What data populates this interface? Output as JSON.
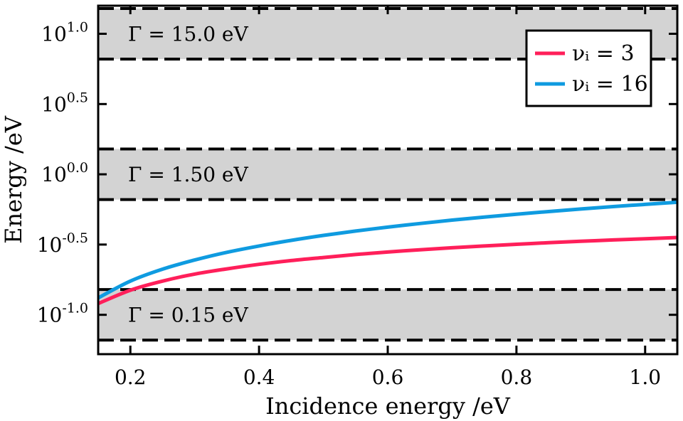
{
  "chart_data": {
    "type": "line",
    "xlabel": "Incidence energy /eV",
    "ylabel": "Energy /eV",
    "xlim": [
      0.15,
      1.05
    ],
    "ylim": [
      -1.28,
      1.2
    ],
    "y_scale": "log10",
    "grid": false,
    "legend_position": "top-right",
    "x_ticks": [
      {
        "value": 0.2,
        "label": "0.2"
      },
      {
        "value": 0.4,
        "label": "0.4"
      },
      {
        "value": 0.6,
        "label": "0.6"
      },
      {
        "value": 0.8,
        "label": "0.8"
      },
      {
        "value": 1.0,
        "label": "1.0"
      }
    ],
    "y_ticks": [
      {
        "value": 1.0,
        "base": "10",
        "exp": "1.0"
      },
      {
        "value": 0.5,
        "base": "10",
        "exp": "0.5"
      },
      {
        "value": 0.0,
        "base": "10",
        "exp": "0.0"
      },
      {
        "value": -0.5,
        "base": "10",
        "exp": "-0.5"
      },
      {
        "value": -1.0,
        "base": "10",
        "exp": "-1.0"
      }
    ],
    "bands": [
      {
        "label": "Γ = 15.0 eV",
        "y_low": 0.82,
        "y_high": 1.18,
        "label_y": 1.0
      },
      {
        "label": "Γ = 1.50 eV",
        "y_low": -0.18,
        "y_high": 0.18,
        "label_y": 0.0
      },
      {
        "label": "Γ = 0.15 eV",
        "y_low": -1.18,
        "y_high": -0.82,
        "label_y": -1.0
      }
    ],
    "series": [
      {
        "name": "νᵢ = 3",
        "color": "#ff1f5a",
        "x": [
          0.15,
          0.2,
          0.25,
          0.3,
          0.35,
          0.4,
          0.45,
          0.5,
          0.55,
          0.6,
          0.65,
          0.7,
          0.75,
          0.8,
          0.85,
          0.9,
          0.95,
          1.0,
          1.05
        ],
        "y": [
          -0.92,
          -0.825,
          -0.76,
          -0.71,
          -0.673,
          -0.641,
          -0.614,
          -0.592,
          -0.571,
          -0.553,
          -0.537,
          -0.523,
          -0.51,
          -0.498,
          -0.487,
          -0.477,
          -0.467,
          -0.459,
          -0.45
        ]
      },
      {
        "name": "νᵢ = 16",
        "color": "#0f9be0",
        "x": [
          0.15,
          0.2,
          0.25,
          0.3,
          0.35,
          0.4,
          0.45,
          0.5,
          0.55,
          0.6,
          0.65,
          0.7,
          0.75,
          0.8,
          0.85,
          0.9,
          0.95,
          1.0,
          1.05
        ],
        "y": [
          -0.88,
          -0.76,
          -0.675,
          -0.61,
          -0.555,
          -0.51,
          -0.47,
          -0.435,
          -0.404,
          -0.376,
          -0.35,
          -0.326,
          -0.304,
          -0.284,
          -0.265,
          -0.247,
          -0.23,
          -0.214,
          -0.199
        ]
      }
    ]
  }
}
